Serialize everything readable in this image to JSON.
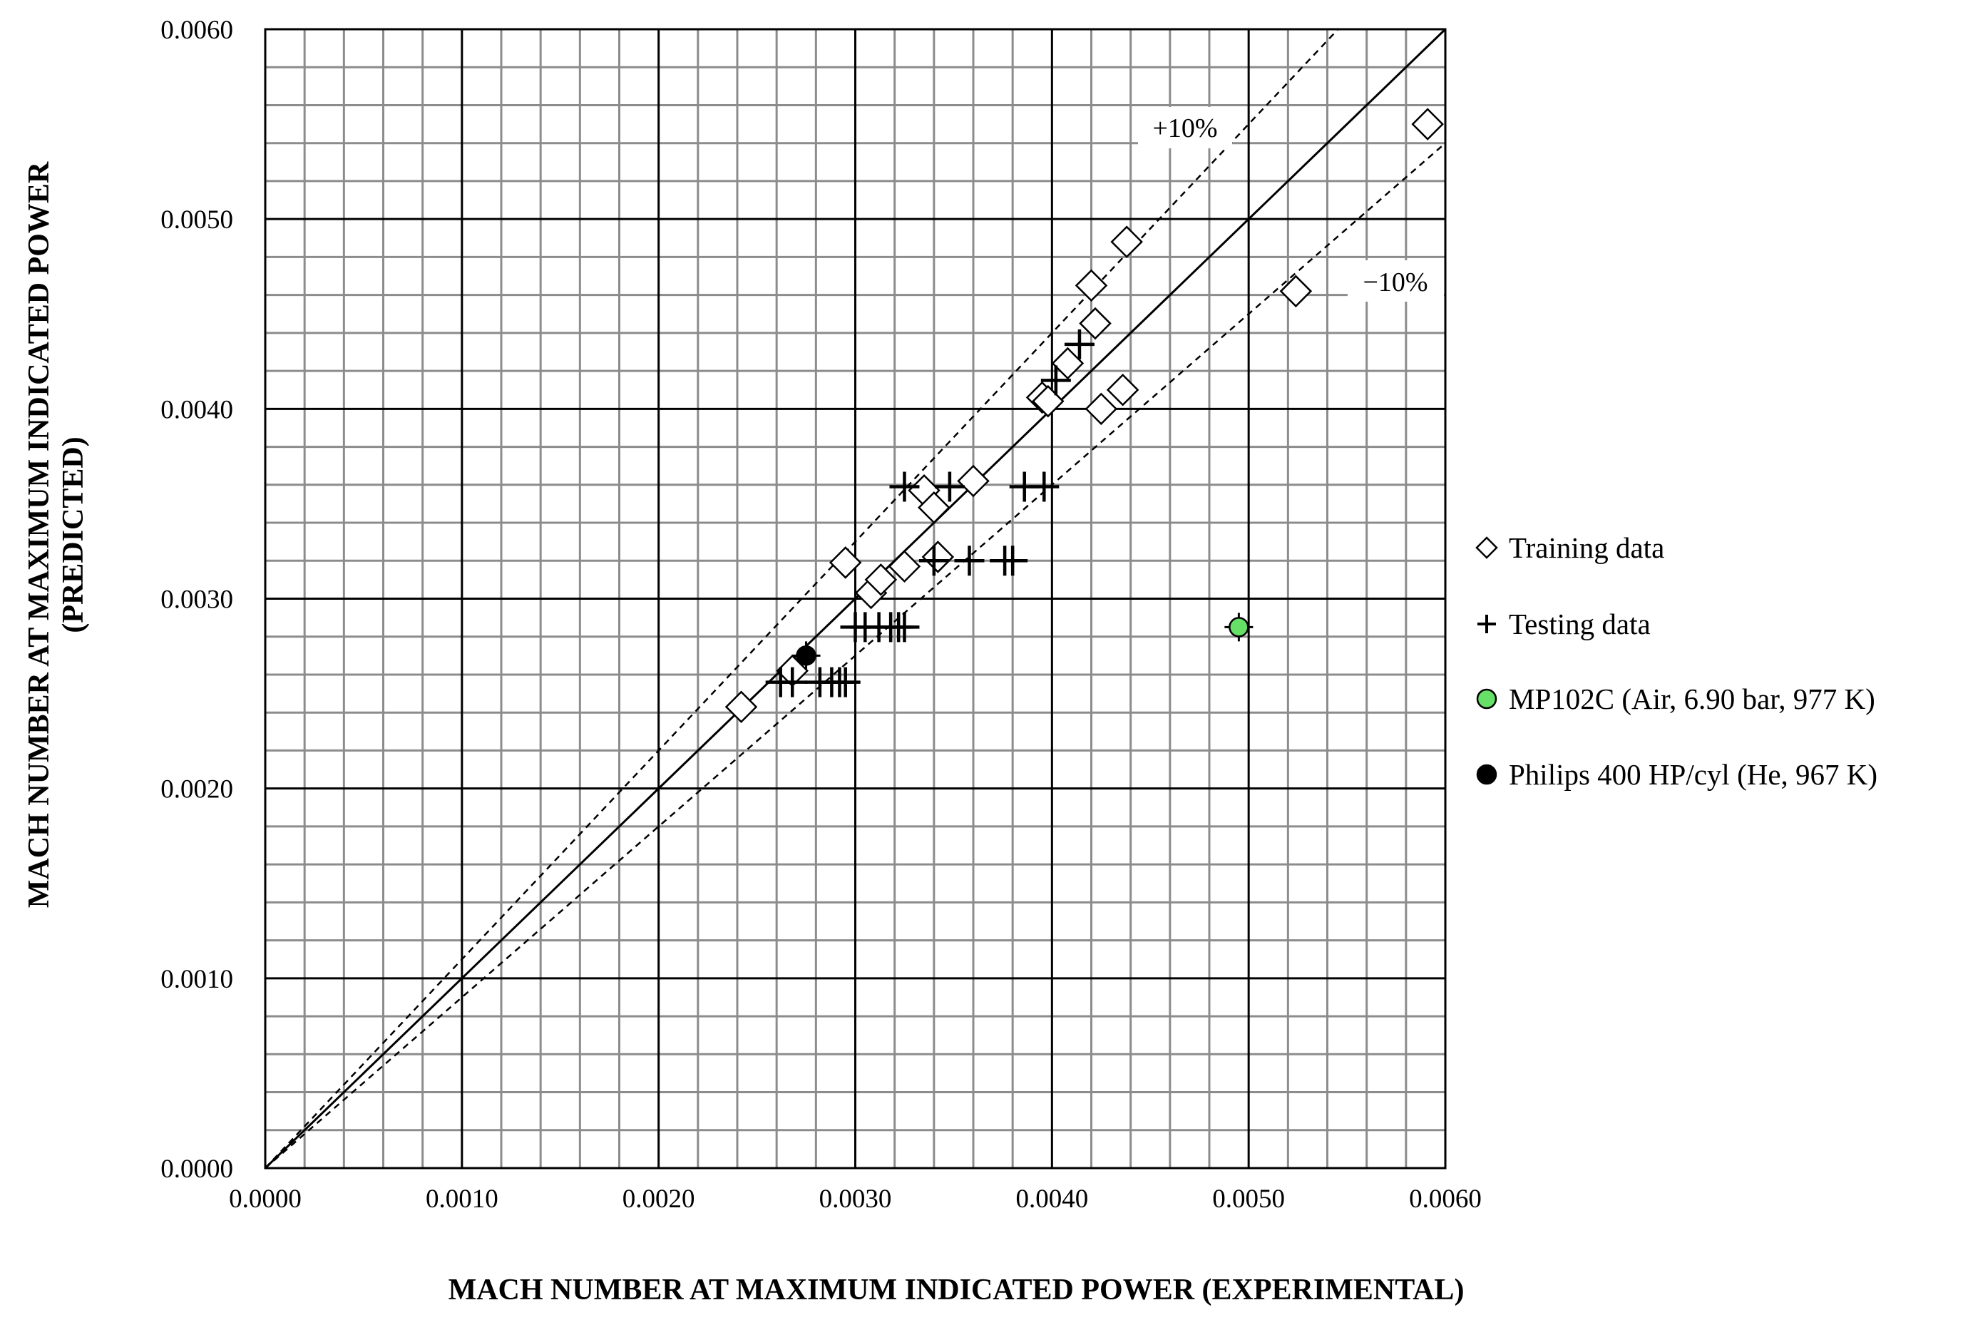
{
  "chart_data": {
    "type": "scatter",
    "xlabel": "MACH NUMBER AT MAXIMUM INDICATED POWER (EXPERIMENTAL)",
    "ylabel_line1": "MACH NUMBER AT MAXIMUM INDICATED POWER",
    "ylabel_line2": "(PREDICTED)",
    "xlim": [
      0,
      0.006
    ],
    "ylim": [
      0,
      0.006
    ],
    "major_step": 0.001,
    "minor_step": 0.0002,
    "grid": true,
    "x_ticks": [
      "0.0000",
      "0.0010",
      "0.0020",
      "0.0030",
      "0.0040",
      "0.0050",
      "0.0060"
    ],
    "y_ticks": [
      "0.0000",
      "0.0010",
      "0.0020",
      "0.0030",
      "0.0040",
      "0.0050",
      "0.0060"
    ],
    "reference_lines": [
      {
        "kind": "parity",
        "slope": 1.0,
        "style": "solid"
      },
      {
        "label": "+10%",
        "slope": 1.1,
        "style": "dashed"
      },
      {
        "label": "−10%",
        "slope": 0.9,
        "style": "dashed"
      }
    ],
    "legend_position": "right",
    "series": [
      {
        "name": "Training data",
        "marker": "diamond",
        "color": "#ffffff",
        "points": [
          [
            0.00242,
            0.00243
          ],
          [
            0.00268,
            0.00262
          ],
          [
            0.00295,
            0.00319
          ],
          [
            0.00308,
            0.00303
          ],
          [
            0.00313,
            0.0031
          ],
          [
            0.00325,
            0.00317
          ],
          [
            0.00335,
            0.00357
          ],
          [
            0.0034,
            0.00348
          ],
          [
            0.00342,
            0.00322
          ],
          [
            0.0036,
            0.00362
          ],
          [
            0.00395,
            0.00406
          ],
          [
            0.00398,
            0.00404
          ],
          [
            0.00408,
            0.00424
          ],
          [
            0.0042,
            0.00465
          ],
          [
            0.00422,
            0.00445
          ],
          [
            0.00425,
            0.004
          ],
          [
            0.00436,
            0.0041
          ],
          [
            0.00438,
            0.00488
          ],
          [
            0.00524,
            0.00462
          ],
          [
            0.00591,
            0.0055
          ]
        ]
      },
      {
        "name": "Testing data",
        "marker": "plus",
        "color": "#000000",
        "points": [
          [
            0.00262,
            0.00256
          ],
          [
            0.00268,
            0.00256
          ],
          [
            0.00282,
            0.00256
          ],
          [
            0.00288,
            0.00256
          ],
          [
            0.00292,
            0.00256
          ],
          [
            0.00295,
            0.00256
          ],
          [
            0.003,
            0.00285
          ],
          [
            0.00305,
            0.00285
          ],
          [
            0.00312,
            0.00285
          ],
          [
            0.00318,
            0.00285
          ],
          [
            0.00322,
            0.00285
          ],
          [
            0.00325,
            0.00285
          ],
          [
            0.00325,
            0.00359
          ],
          [
            0.00348,
            0.00359
          ],
          [
            0.00386,
            0.00359
          ],
          [
            0.00396,
            0.00359
          ],
          [
            0.0034,
            0.0032
          ],
          [
            0.00358,
            0.0032
          ],
          [
            0.00376,
            0.0032
          ],
          [
            0.0038,
            0.0032
          ],
          [
            0.00402,
            0.00415
          ],
          [
            0.00414,
            0.00434
          ]
        ]
      },
      {
        "name": "MP102C (Air, 6.90 bar, 977 K)",
        "marker": "circle",
        "color": "#66e066",
        "points": [
          [
            0.00495,
            0.00285
          ]
        ]
      },
      {
        "name": "Philips 400 HP/cyl (He, 967 K)",
        "marker": "circle",
        "color": "#000000",
        "points": [
          [
            0.00275,
            0.0027
          ]
        ]
      }
    ]
  }
}
